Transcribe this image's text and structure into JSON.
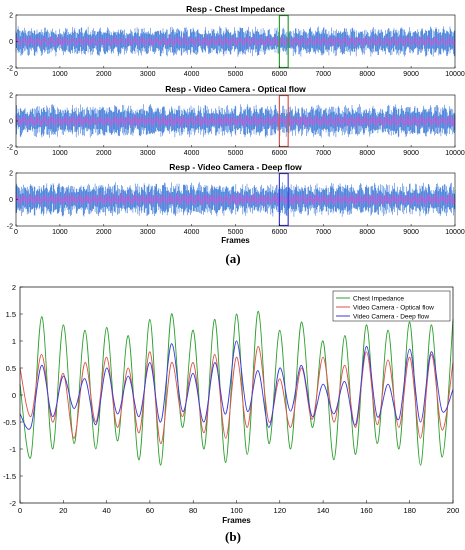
{
  "captions": {
    "a": "(a)",
    "b": "(b)"
  },
  "chart_data": [
    {
      "type": "line",
      "title": "Resp - Chest Impedance",
      "xlabel": "",
      "ylabel": "",
      "xlim": [
        0,
        10000
      ],
      "ylim": [
        -2,
        2
      ],
      "xticks": [
        "0",
        "1000",
        "2000",
        "3000",
        "4000",
        "5000",
        "6000",
        "7000",
        "8000",
        "9000",
        "10000"
      ],
      "yticks": [
        "-2",
        "0",
        "2"
      ],
      "series": [
        {
          "color": "#2e6fd6",
          "amplitude": 0.7,
          "note_profile": "dense oscillating signal"
        },
        {
          "color": "#d94fd4",
          "amplitude": 0.2
        }
      ],
      "highlight": {
        "x_range": [
          6000,
          6200
        ],
        "color": "#2ca02c"
      }
    },
    {
      "type": "line",
      "title": "Resp - Video Camera - Optical flow",
      "xlabel": "",
      "ylabel": "",
      "xlim": [
        0,
        10000
      ],
      "ylim": [
        -2,
        2
      ],
      "xticks": [
        "0",
        "1000",
        "2000",
        "3000",
        "4000",
        "5000",
        "6000",
        "7000",
        "8000",
        "9000",
        "10000"
      ],
      "yticks": [
        "-2",
        "0",
        "2"
      ],
      "series": [
        {
          "color": "#2e6fd6",
          "amplitude": 0.8
        },
        {
          "color": "#d94fd4",
          "amplitude": 0.25
        }
      ],
      "highlight": {
        "x_range": [
          6000,
          6200
        ],
        "color": "#d9534f"
      }
    },
    {
      "type": "line",
      "title": "Resp - Video Camera - Deep flow",
      "xlabel": "Frames",
      "ylabel": "",
      "xlim": [
        0,
        10000
      ],
      "ylim": [
        -2,
        2
      ],
      "xticks": [
        "0",
        "1000",
        "2000",
        "3000",
        "4000",
        "5000",
        "6000",
        "7000",
        "8000",
        "9000",
        "10000"
      ],
      "yticks": [
        "-2",
        "0",
        "2"
      ],
      "series": [
        {
          "color": "#2e6fd6",
          "amplitude": 0.8
        },
        {
          "color": "#d94fd4",
          "amplitude": 0.25
        }
      ],
      "highlight": {
        "x_range": [
          6000,
          6200
        ],
        "color": "#3b3bdb"
      }
    },
    {
      "type": "line",
      "title": "",
      "xlabel": "Frames",
      "ylabel": "",
      "xlim": [
        0,
        200
      ],
      "ylim": [
        -2,
        2
      ],
      "xticks": [
        "0",
        "20",
        "40",
        "60",
        "80",
        "100",
        "120",
        "140",
        "160",
        "180",
        "200"
      ],
      "yticks": [
        "-2",
        "-1.5",
        "-1",
        "-0.5",
        "0",
        "0.5",
        "1",
        "1.5",
        "2"
      ],
      "legend_position": "top-right",
      "series": [
        {
          "name": "Chest Impedance",
          "color": "#2ca02c",
          "x": [
            0,
            5,
            10,
            15,
            20,
            25,
            30,
            35,
            40,
            45,
            50,
            55,
            60,
            65,
            70,
            75,
            80,
            85,
            90,
            95,
            100,
            105,
            110,
            115,
            120,
            125,
            130,
            135,
            140,
            145,
            150,
            155,
            160,
            165,
            170,
            175,
            180,
            185,
            190,
            195,
            200
          ],
          "y": [
            0.2,
            -1.15,
            1.45,
            -1.0,
            1.3,
            -0.9,
            1.2,
            -1.0,
            1.25,
            -0.85,
            1.1,
            -1.2,
            1.4,
            -1.3,
            1.5,
            -0.6,
            1.2,
            -1.0,
            1.4,
            -1.25,
            1.5,
            -1.1,
            1.55,
            -0.9,
            1.2,
            -1.0,
            1.35,
            -0.6,
            1.0,
            -1.2,
            1.1,
            -1.1,
            1.3,
            -0.9,
            1.2,
            -1.0,
            1.35,
            -1.3,
            1.3,
            -1.15,
            1.4
          ]
        },
        {
          "name": "Video Camera - Optical flow",
          "color": "#e0524a",
          "x": [
            0,
            5,
            10,
            15,
            20,
            25,
            30,
            35,
            40,
            45,
            50,
            55,
            60,
            65,
            70,
            75,
            80,
            85,
            90,
            95,
            100,
            105,
            110,
            115,
            120,
            125,
            130,
            135,
            140,
            145,
            150,
            155,
            160,
            165,
            170,
            175,
            180,
            185,
            190,
            195,
            200
          ],
          "y": [
            0.5,
            -0.4,
            0.75,
            -0.5,
            0.4,
            -0.8,
            0.6,
            -0.5,
            0.7,
            -0.6,
            0.5,
            -0.7,
            0.8,
            -0.9,
            0.6,
            -0.4,
            0.6,
            -0.7,
            0.75,
            -0.8,
            0.7,
            -0.6,
            0.9,
            -0.5,
            0.3,
            -0.6,
            0.5,
            -0.45,
            0.7,
            -0.5,
            0.55,
            -0.6,
            0.8,
            -0.55,
            0.65,
            -0.6,
            0.7,
            -0.8,
            0.75,
            -0.65,
            0.6
          ]
        },
        {
          "name": "Video Camera - Deep flow",
          "color": "#3b3bdb",
          "x": [
            0,
            5,
            10,
            15,
            20,
            25,
            30,
            35,
            40,
            45,
            50,
            55,
            60,
            65,
            70,
            75,
            80,
            85,
            90,
            95,
            100,
            105,
            110,
            115,
            120,
            125,
            130,
            135,
            140,
            145,
            150,
            155,
            160,
            165,
            170,
            175,
            180,
            185,
            190,
            195,
            200
          ],
          "y": [
            -0.35,
            -0.6,
            0.55,
            -0.4,
            0.35,
            -0.25,
            0.3,
            -0.55,
            0.5,
            -0.35,
            0.35,
            -0.4,
            0.6,
            -0.5,
            0.95,
            -0.3,
            0.4,
            -0.5,
            0.6,
            -0.35,
            1.0,
            -0.3,
            0.45,
            -0.6,
            0.5,
            -0.3,
            0.55,
            -0.4,
            0.2,
            -0.35,
            0.25,
            -0.55,
            0.9,
            -0.4,
            0.2,
            -0.45,
            0.85,
            -0.5,
            0.8,
            -0.3,
            0.1
          ]
        }
      ]
    }
  ]
}
